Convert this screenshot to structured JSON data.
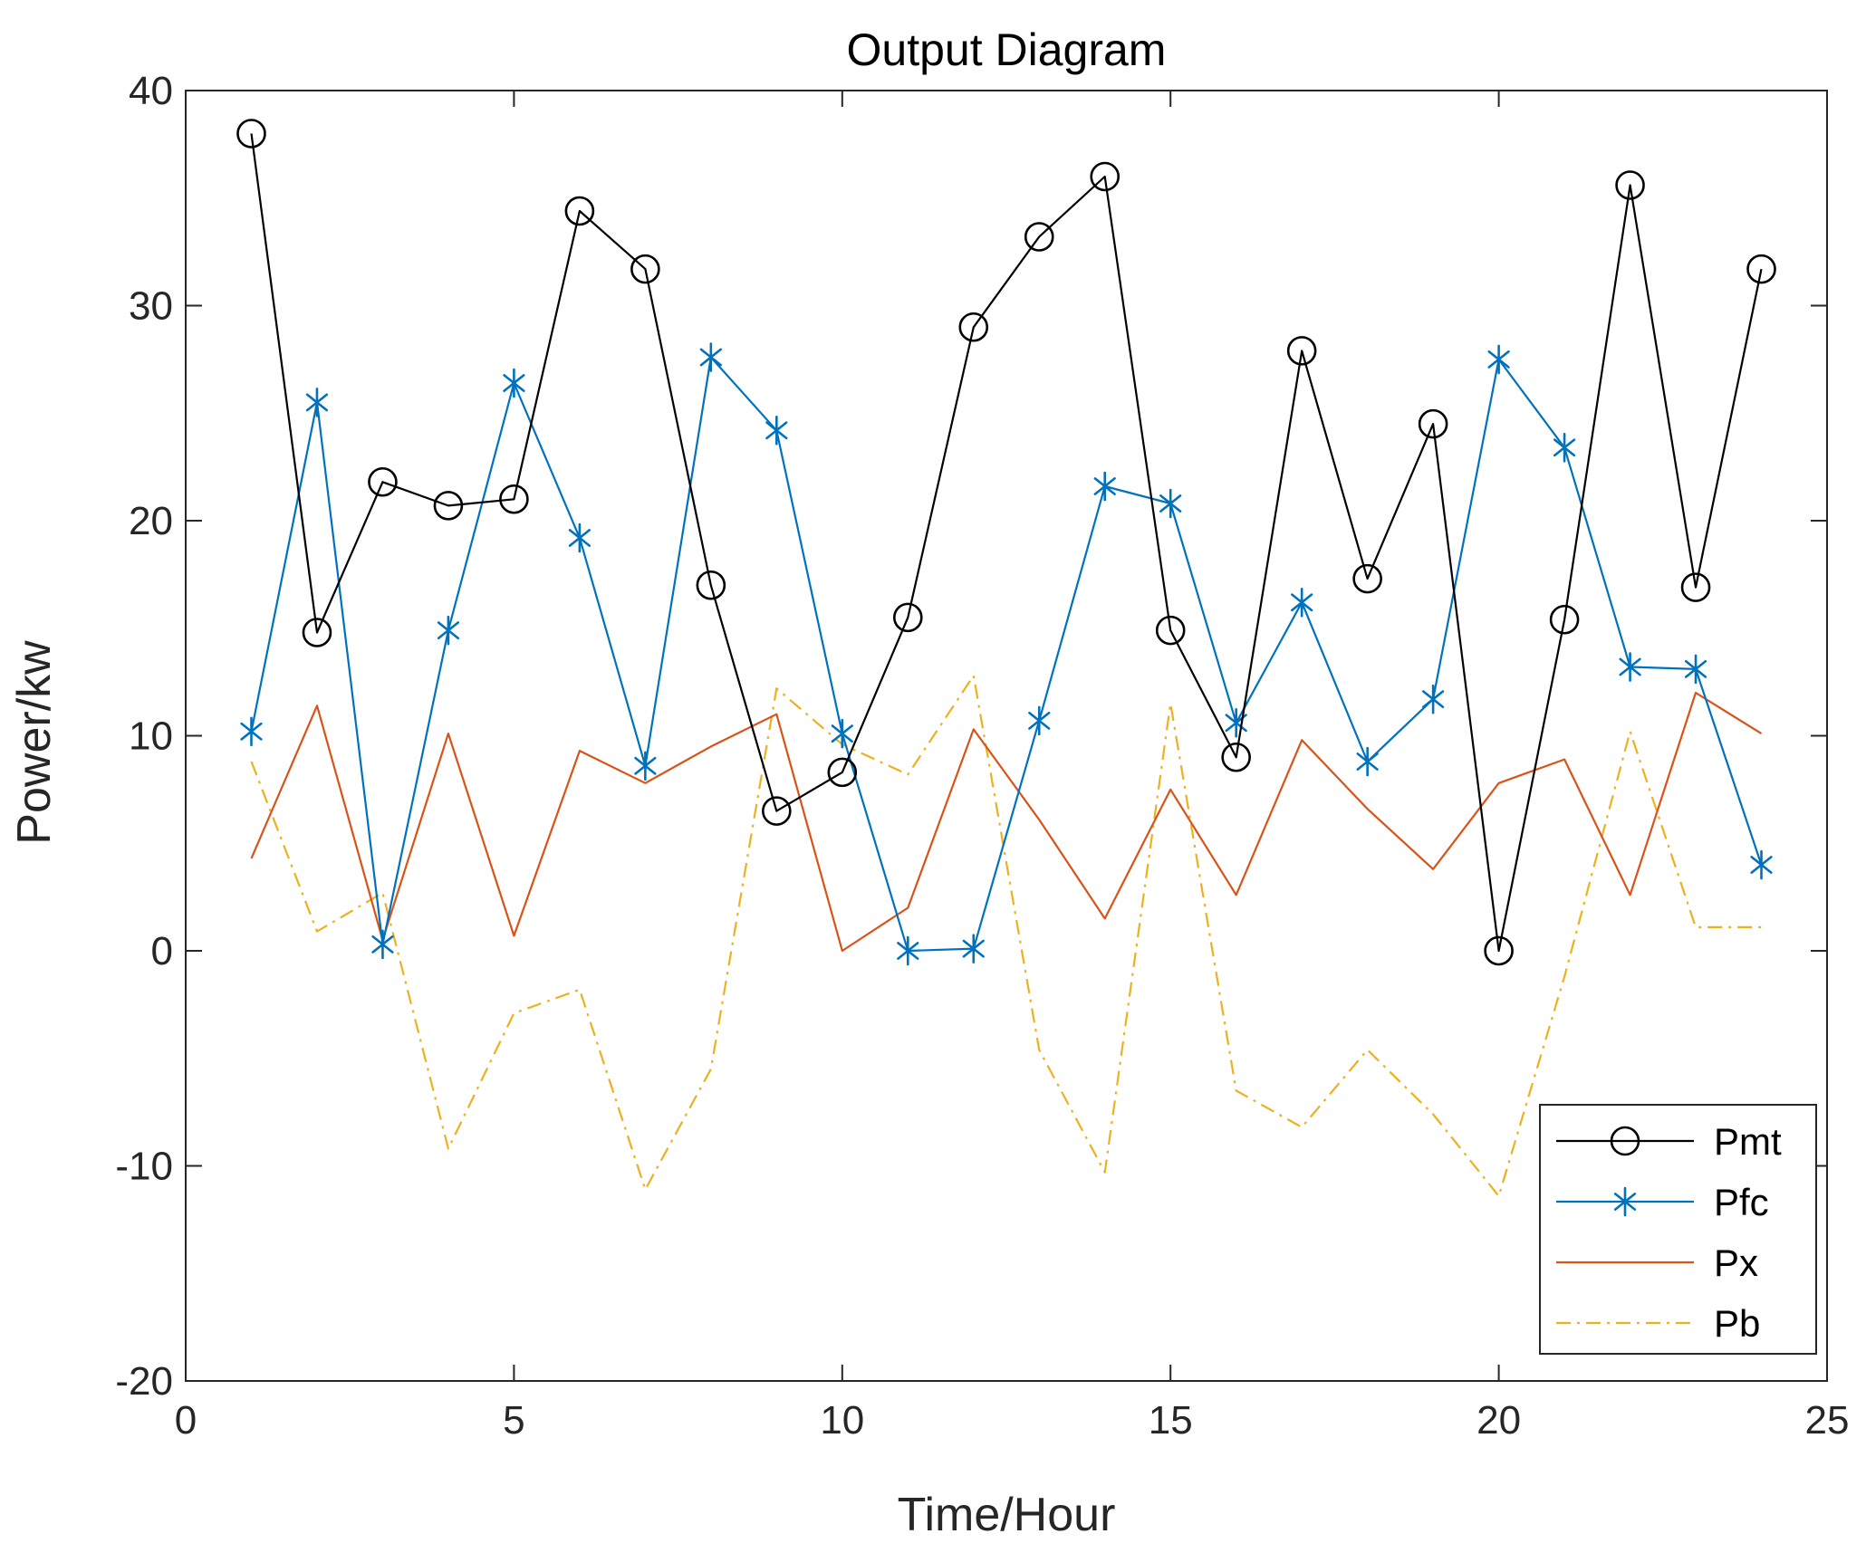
{
  "chart_data": {
    "type": "line",
    "title": "Output Diagram",
    "xlabel": "Time/Hour",
    "ylabel": "Power/kw",
    "xlim": [
      0,
      25
    ],
    "ylim": [
      -20,
      40
    ],
    "xticks": [
      0,
      5,
      10,
      15,
      20,
      25
    ],
    "yticks": [
      -20,
      -10,
      0,
      10,
      20,
      30,
      40
    ],
    "grid": false,
    "legend_position": "bottom-right",
    "x": [
      1,
      2,
      3,
      4,
      5,
      6,
      7,
      8,
      9,
      10,
      11,
      12,
      13,
      14,
      15,
      16,
      17,
      18,
      19,
      20,
      21,
      22,
      23,
      24
    ],
    "series": [
      {
        "name": "Pmt",
        "color": "#000000",
        "marker": "circle",
        "line_style": "solid",
        "values": [
          38,
          14.8,
          21.8,
          20.7,
          21,
          34.4,
          31.7,
          17,
          6.5,
          8.3,
          15.5,
          29,
          33.2,
          36,
          14.9,
          9,
          27.9,
          17.3,
          24.5,
          0,
          15.4,
          35.6,
          16.9,
          31.7
        ]
      },
      {
        "name": "Pfc",
        "color": "#0072BD",
        "marker": "asterisk",
        "line_style": "solid",
        "values": [
          10.2,
          25.5,
          0.3,
          14.9,
          26.4,
          19.2,
          8.6,
          27.6,
          24.2,
          10.1,
          0,
          0.1,
          10.7,
          21.6,
          20.8,
          10.6,
          16.2,
          8.8,
          11.7,
          27.5,
          23.4,
          13.2,
          13.1,
          4
        ]
      },
      {
        "name": "Px",
        "color": "#D95319",
        "marker": "none",
        "line_style": "solid",
        "values": [
          4.3,
          11.4,
          0.5,
          10.1,
          0.7,
          9.3,
          7.8,
          9.5,
          11,
          0,
          2,
          10.3,
          6.1,
          1.5,
          7.5,
          2.6,
          9.8,
          6.6,
          3.8,
          7.8,
          8.9,
          2.6,
          12,
          10.1
        ]
      },
      {
        "name": "Pb",
        "color": "#EDB120",
        "marker": "none",
        "line_style": "dashdot",
        "values": [
          8.8,
          0.9,
          2.7,
          -9.2,
          -2.9,
          -1.8,
          -11.1,
          -5.5,
          12.2,
          9.6,
          8.2,
          12.8,
          -4.6,
          -10.3,
          11.5,
          -6.5,
          -8.2,
          -4.6,
          -7.6,
          -11.4,
          -1.2,
          10.2,
          1.1,
          1.1
        ]
      }
    ]
  }
}
